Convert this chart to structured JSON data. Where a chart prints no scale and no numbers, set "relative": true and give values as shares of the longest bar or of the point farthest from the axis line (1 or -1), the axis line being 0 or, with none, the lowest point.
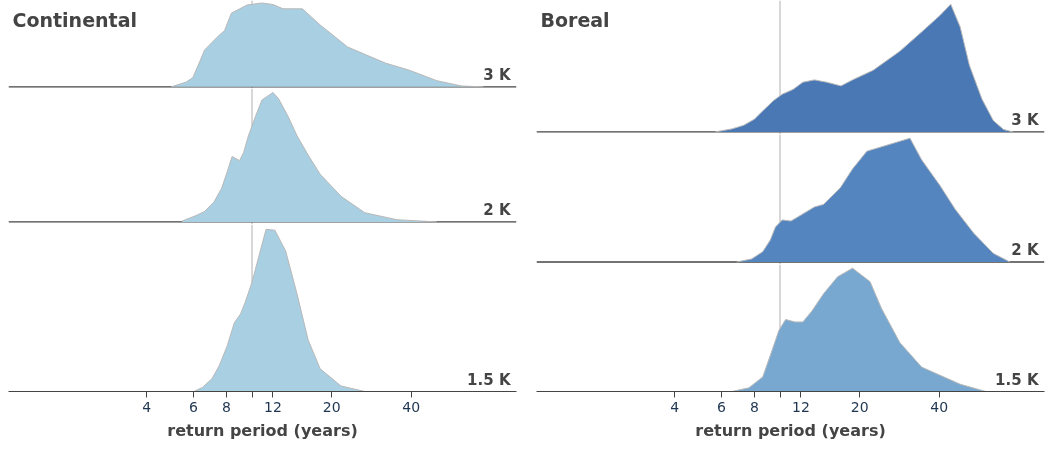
{
  "chart_data": [
    {
      "type": "area",
      "title": "Continental",
      "relative": true,
      "log": "x",
      "xlim": [
        1.2,
        100
      ],
      "tick_labels": false,
      "grid": false,
      "ref_lines": [
        {
          "axis": "x",
          "value": 10,
          "color": "#b0b0b0"
        }
      ],
      "series": [
        {
          "name": "3 K",
          "color": "#a9cfe3",
          "x": [
            4.95,
            5.62,
            5.97,
            6.31,
            6.62,
            7.05,
            7.51,
            7.87,
            8.35,
            9.57,
            10.9,
            12.0,
            13.1,
            15.5,
            18.1,
            23.0,
            31.9,
            39.6,
            50,
            62,
            75
          ],
          "values": [
            0,
            0.055,
            0.108,
            0.284,
            0.44,
            0.529,
            0.615,
            0.669,
            0.878,
            0.976,
            1,
            0.982,
            0.931,
            0.931,
            0.738,
            0.475,
            0.284,
            0.195,
            0.073,
            0.01,
            0
          ]
        }
      ]
    },
    {
      "type": "area",
      "relative": true,
      "log": "x",
      "xlim": [
        1.2,
        100
      ],
      "tick_labels": false,
      "grid": false,
      "ref_lines": [
        {
          "axis": "x",
          "value": 10,
          "color": "#b0b0b0"
        }
      ],
      "series": [
        {
          "name": "2 K",
          "color": "#a9cfe3",
          "x": [
            5.43,
            6.14,
            6.62,
            7.18,
            7.68,
            8.06,
            8.41,
            8.97,
            9.3,
            9.69,
            10.3,
            10.9,
            12.0,
            12.6,
            13.7,
            14.8,
            16.3,
            18.1,
            21.7,
            26.7,
            35.3,
            50
          ],
          "values": [
            0.006,
            0.049,
            0.081,
            0.154,
            0.261,
            0.388,
            0.505,
            0.473,
            0.537,
            0.665,
            0.813,
            0.941,
            1,
            0.951,
            0.813,
            0.665,
            0.516,
            0.368,
            0.198,
            0.071,
            0.017,
            0
          ]
        }
      ]
    },
    {
      "type": "area",
      "xlabel": "return period (years)",
      "relative": true,
      "log": "x",
      "xlim": [
        1.2,
        100
      ],
      "xticks": [
        4,
        6,
        8,
        {
          "value": 10,
          "label": null
        },
        12,
        20,
        40
      ],
      "grid": false,
      "ref_lines": [
        {
          "axis": "x",
          "value": 10,
          "color": "#b0b0b0"
        }
      ],
      "series": [
        {
          "name": "1.5 K",
          "color": "#a9cfe3",
          "x": [
            6.03,
            6.49,
            7.05,
            7.51,
            8.06,
            8.57,
            9.04,
            9.41,
            9.99,
            10.6,
            11.3,
            12.2,
            13.4,
            14.8,
            16.3,
            18.1,
            21.7,
            26.7
          ],
          "values": [
            0,
            0.025,
            0.078,
            0.158,
            0.282,
            0.424,
            0.477,
            0.548,
            0.672,
            0.831,
            1,
            0.995,
            0.867,
            0.601,
            0.318,
            0.14,
            0.034,
            0
          ]
        }
      ]
    },
    {
      "type": "area",
      "title": "Boreal",
      "relative": true,
      "log": "x",
      "xlim": [
        1.2,
        100
      ],
      "tick_labels": false,
      "grid": false,
      "ref_lines": [
        {
          "axis": "x",
          "value": 10,
          "color": "#b0b0b0"
        }
      ],
      "series": [
        {
          "name": "3 K",
          "color": "#4a78b5",
          "x": [
            5.69,
            6.58,
            7.29,
            8.0,
            8.6,
            9.49,
            10.2,
            11.2,
            12.2,
            13.5,
            15.0,
            17.0,
            18.8,
            22.5,
            28.4,
            34.3,
            40.3,
            44.2,
            48,
            52,
            58,
            64,
            70,
            76
          ],
          "values": [
            0,
            0.024,
            0.052,
            0.1,
            0.165,
            0.249,
            0.296,
            0.333,
            0.39,
            0.408,
            0.39,
            0.361,
            0.408,
            0.483,
            0.633,
            0.783,
            0.914,
            1,
            0.822,
            0.522,
            0.258,
            0.09,
            0.019,
            0
          ]
        }
      ]
    },
    {
      "type": "area",
      "relative": true,
      "log": "x",
      "xlim": [
        1.2,
        100
      ],
      "tick_labels": false,
      "grid": false,
      "ref_lines": [
        {
          "axis": "x",
          "value": 10,
          "color": "#b0b0b0"
        }
      ],
      "series": [
        {
          "name": "2 K",
          "color": "#5585bf",
          "x": [
            6.86,
            7.81,
            8.6,
            9.19,
            9.61,
            10.2,
            11.0,
            12.0,
            13.5,
            14.6,
            16.9,
            18.8,
            21.3,
            31.0,
            34.3,
            40.3,
            46,
            54,
            64,
            74
          ],
          "values": [
            0,
            0.025,
            0.083,
            0.178,
            0.283,
            0.34,
            0.331,
            0.379,
            0.445,
            0.465,
            0.599,
            0.752,
            0.895,
            1,
            0.826,
            0.616,
            0.425,
            0.233,
            0.07,
            0
          ]
        }
      ]
    },
    {
      "type": "area",
      "xlabel": "return period (years)",
      "relative": true,
      "log": "x",
      "xlim": [
        1.2,
        100
      ],
      "xticks": [
        4,
        6,
        8,
        {
          "value": 10,
          "label": null
        },
        12,
        20,
        40
      ],
      "grid": false,
      "ref_lines": [
        {
          "axis": "x",
          "value": 10,
          "color": "#b0b0b0"
        }
      ],
      "series": [
        {
          "name": "1.5 K",
          "color": "#78a8d0",
          "x": [
            6.58,
            7.63,
            8.6,
            9.34,
            9.9,
            10.5,
            11.4,
            12.2,
            13.2,
            14.6,
            16.5,
            18.8,
            21.9,
            24.2,
            28.4,
            34.3,
            48,
            60
          ],
          "values": [
            0,
            0.03,
            0.118,
            0.336,
            0.495,
            0.584,
            0.564,
            0.564,
            0.653,
            0.792,
            0.93,
            1,
            0.891,
            0.673,
            0.396,
            0.198,
            0.059,
            0
          ]
        }
      ]
    }
  ]
}
